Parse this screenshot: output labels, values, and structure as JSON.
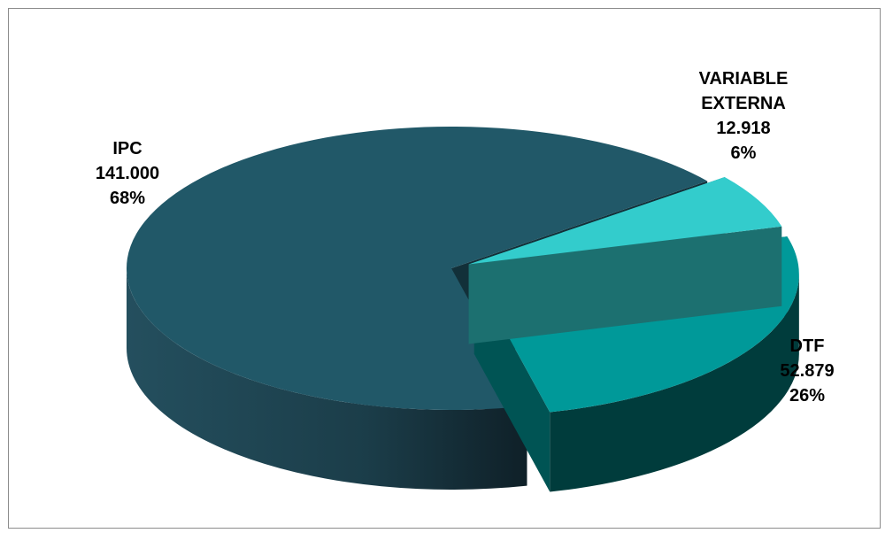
{
  "chart_data": {
    "type": "pie",
    "style": "3d-exploded",
    "title": "",
    "slices": [
      {
        "label": [
          "VARIABLE",
          "EXTERNA"
        ],
        "value": 12.918,
        "value_text": "12.918",
        "percent": 6,
        "percent_text": "6%",
        "color": "#33cccc"
      },
      {
        "label": [
          "DTF"
        ],
        "value": 52.879,
        "value_text": "52.879",
        "percent": 26,
        "percent_text": "26%",
        "color": "#009999"
      },
      {
        "label": [
          "IPC"
        ],
        "value": 141.0,
        "value_text": "141.000",
        "percent": 68,
        "percent_text": "68%",
        "color": "#215868"
      }
    ]
  }
}
